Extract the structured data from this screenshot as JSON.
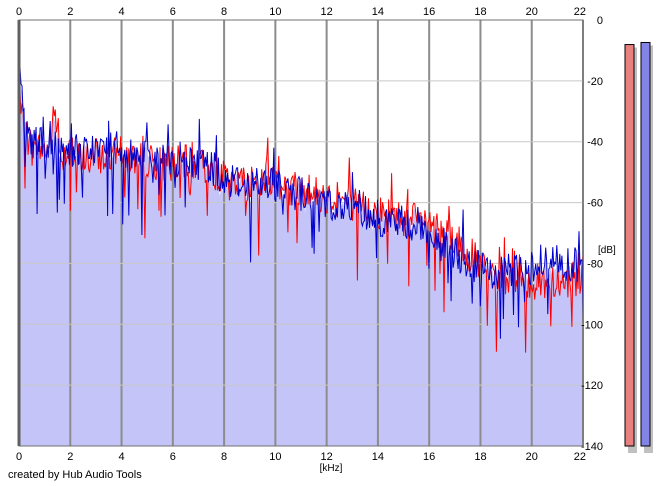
{
  "chart_data": {
    "type": "area",
    "xlabel": "[kHz]",
    "ylabel": "[dB]",
    "xlim": [
      0,
      22
    ],
    "ylim": [
      -140,
      0
    ],
    "x_ticks": [
      0,
      2,
      4,
      6,
      8,
      10,
      12,
      14,
      16,
      18,
      20,
      22
    ],
    "y_ticks": [
      0,
      -20,
      -40,
      -60,
      -80,
      -100,
      -120,
      -140
    ],
    "grid": true,
    "series": [
      {
        "color": "#ff0000",
        "x": [
          0,
          0.1,
          0.2,
          0.4,
          0.6,
          0.8,
          1.0,
          1.2,
          1.4,
          1.6,
          2,
          2.5,
          3,
          3.5,
          4,
          4.5,
          5,
          5.5,
          6,
          6.5,
          7,
          7.5,
          8,
          8.5,
          9,
          9.5,
          10,
          10.5,
          11,
          11.5,
          12,
          12.5,
          13,
          13.5,
          14,
          14.5,
          15,
          15.5,
          16,
          16.5,
          17,
          17.5,
          18,
          18.5,
          19,
          19.5,
          20,
          20.5,
          21,
          21.5,
          22
        ],
        "values": [
          -28,
          -32,
          -36,
          -40,
          -44,
          -42,
          -43,
          -41,
          -30,
          -44,
          -44,
          -46,
          -45,
          -45,
          -44,
          -46,
          -46,
          -47,
          -47,
          -47,
          -48,
          -49,
          -52,
          -53,
          -54,
          -54,
          -52,
          -55,
          -55,
          -57,
          -58,
          -59,
          -60,
          -62,
          -63,
          -64,
          -65,
          -66,
          -66,
          -69,
          -72,
          -76,
          -81,
          -84,
          -85,
          -86,
          -86,
          -86,
          -86,
          -85,
          -87
        ]
      },
      {
        "color": "#0000cc",
        "x": [
          0,
          0.1,
          0.2,
          0.4,
          0.6,
          0.8,
          1.0,
          1.2,
          1.4,
          1.6,
          2,
          2.5,
          3,
          3.5,
          4,
          4.5,
          5,
          5.5,
          6,
          6.5,
          7,
          7.5,
          8,
          8.5,
          9,
          9.5,
          10,
          10.5,
          11,
          11.5,
          12,
          12.5,
          13,
          13.5,
          14,
          14.5,
          15,
          15.5,
          16,
          16.5,
          17,
          17.5,
          18,
          18.5,
          19,
          19.5,
          20,
          20.5,
          21,
          21.5,
          22
        ],
        "values": [
          -12,
          -28,
          -34,
          -38,
          -40,
          -41,
          -42,
          -42,
          -40,
          -42,
          -42,
          -44,
          -43,
          -43,
          -42,
          -44,
          -45,
          -46,
          -46,
          -46,
          -47,
          -48,
          -52,
          -53,
          -54,
          -54,
          -55,
          -56,
          -57,
          -58,
          -60,
          -61,
          -62,
          -63,
          -65,
          -66,
          -67,
          -67,
          -70,
          -74,
          -76,
          -79,
          -82,
          -84,
          -83,
          -82,
          -81,
          -80,
          -79,
          -80,
          -81
        ]
      }
    ],
    "fill_color": "#c4c4f8",
    "meters": {
      "left_level": 0.965,
      "right_level": 0.97,
      "left_color": "#e88080",
      "right_color": "#8484e8"
    },
    "credit": "created by Hub Audio Tools"
  }
}
